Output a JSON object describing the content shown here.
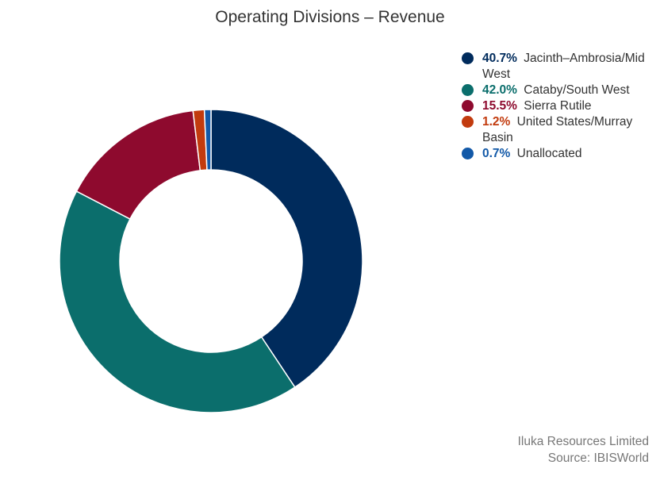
{
  "chart_data": {
    "type": "pie",
    "style": "donut",
    "title": "Operating Divisions – Revenue",
    "categories": [
      "Jacinth–Ambrosia/Mid West",
      "Cataby/South West",
      "Sierra Rutile",
      "United States/Murray Basin",
      "Unallocated"
    ],
    "values": [
      40.7,
      42.0,
      15.5,
      1.2,
      0.7
    ],
    "value_labels": [
      "40.7%",
      "42.0%",
      "15.5%",
      "1.2%",
      "0.7%"
    ],
    "colors": [
      "#002b5c",
      "#0b6e6c",
      "#8e0a2e",
      "#c23b0e",
      "#1259a8"
    ],
    "legend_position": "top-right"
  },
  "legend": [
    {
      "value": "40.7%",
      "label": "Jacinth–Ambrosia/Mid West"
    },
    {
      "value": "42.0%",
      "label": "Cataby/South West"
    },
    {
      "value": "15.5%",
      "label": "Sierra Rutile"
    },
    {
      "value": "1.2%",
      "label": "United States/Murray Basin"
    },
    {
      "value": "0.7%",
      "label": "Unallocated"
    }
  ],
  "footer": {
    "company": "Iluka Resources Limited",
    "source": "Source: IBISWorld"
  }
}
